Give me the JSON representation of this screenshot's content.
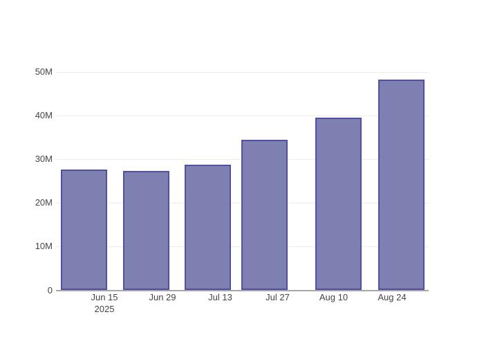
{
  "chart_data": {
    "type": "bar",
    "title": "",
    "xlabel": "",
    "ylabel": "",
    "grid": true,
    "legend": false,
    "x_tick_labels": [
      "Jun 15",
      "Jun 29",
      "Jul 13",
      "Jul 27",
      "Aug 10",
      "Aug 24"
    ],
    "x_tick_sublabels": [
      "2025",
      "",
      "",
      "",
      "",
      ""
    ],
    "values_millions": [
      27.7,
      27.3,
      28.8,
      34.4,
      39.6,
      48.3
    ],
    "y_ticks": [
      {
        "value": 0,
        "label": "0"
      },
      {
        "value": 10,
        "label": "10M"
      },
      {
        "value": 20,
        "label": "20M"
      },
      {
        "value": 30,
        "label": "30M"
      },
      {
        "value": 40,
        "label": "40M"
      },
      {
        "value": 50,
        "label": "50M"
      }
    ],
    "ylim": [
      0,
      53.8
    ]
  },
  "colors": {
    "bar_fill": "#7F80B2",
    "bar_border": "#514F9F",
    "gridline": "#EBEBEB",
    "axis_line": "#A6A6A6",
    "tick_text": "#444444",
    "background": "#FFFFFF"
  }
}
